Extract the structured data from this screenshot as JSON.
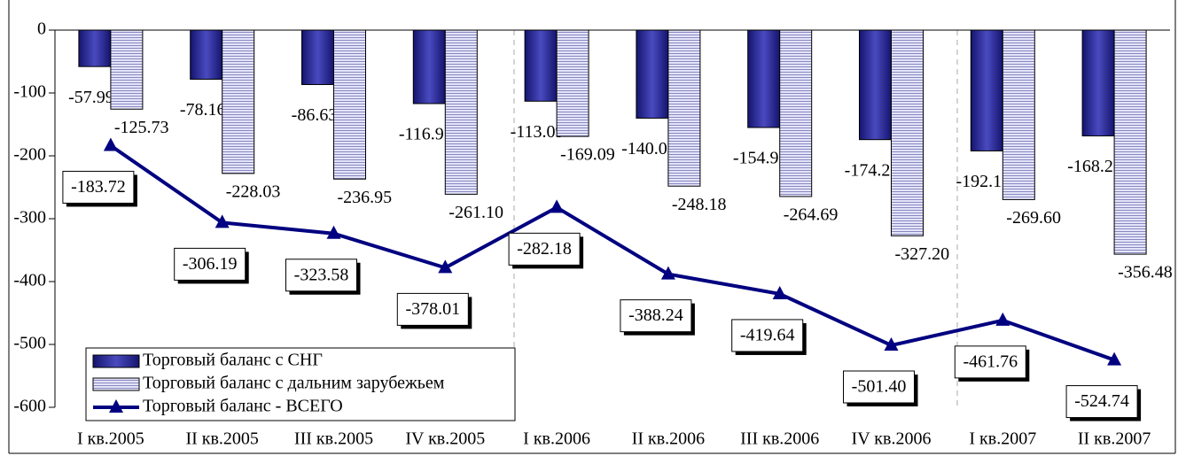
{
  "chart_data": {
    "type": "bar",
    "categories": [
      "I кв.2005",
      "II кв.2005",
      "III кв.2005",
      "IV кв.2005",
      "I кв.2006",
      "II кв.2006",
      "III кв.2006",
      "IV кв.2006",
      "I кв.2007",
      "II кв.2007"
    ],
    "series": [
      {
        "name": "Торговый баланс с СНГ",
        "type": "bar",
        "color": "#2a2a9a",
        "values": [
          -57.99,
          -78.16,
          -86.63,
          -116.91,
          -113.09,
          -140.06,
          -154.95,
          -174.2,
          -192.16,
          -168.26
        ],
        "value_labels": [
          "-57.99",
          "-78.16",
          "-86.63",
          "-116.91",
          "-113.09",
          "-140.06",
          "-154.95",
          "-174.20",
          "-192.16",
          "-168.26"
        ]
      },
      {
        "name": "Торговый баланс с дальним зарубежьем",
        "type": "bar",
        "color": "#c8c8f0",
        "values": [
          -125.73,
          -228.03,
          -236.95,
          -261.1,
          -169.09,
          -248.18,
          -264.69,
          -327.2,
          -269.6,
          -356.48
        ],
        "value_labels": [
          "-125.73",
          "-228.03",
          "-236.95",
          "-261.10",
          "-169.09",
          "-248.18",
          "-264.69",
          "-327.20",
          "-269.60",
          "-356.48"
        ]
      },
      {
        "name": "Торговый баланс - ВСЕГО",
        "type": "line",
        "color": "#000080",
        "values": [
          -183.72,
          -306.19,
          -323.58,
          -378.01,
          -282.18,
          -388.24,
          -419.64,
          -501.4,
          -461.76,
          -524.74
        ],
        "value_labels": [
          "-183.72",
          "-306.19",
          "-323.58",
          "-378.01",
          "-282.18",
          "-388.24",
          "-419.64",
          "-501.40",
          "-461.76",
          "-524.74"
        ]
      }
    ],
    "ylim": [
      -600,
      0
    ],
    "yticks": [
      0,
      -100,
      -200,
      -300,
      -400,
      -500,
      -600
    ],
    "legend": "lower left"
  }
}
